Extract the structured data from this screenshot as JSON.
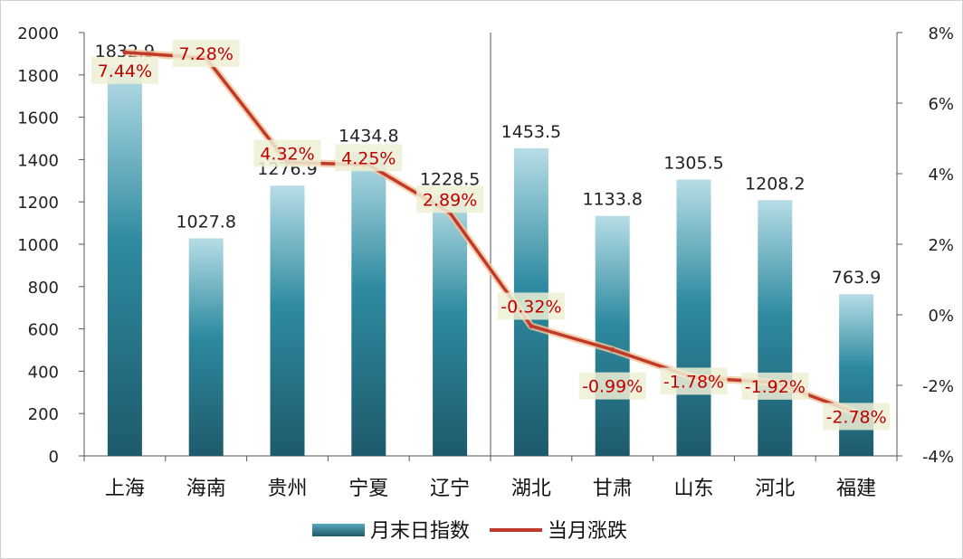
{
  "chart_data": {
    "type": "bar",
    "categories": [
      "上海",
      "海南",
      "贵州",
      "宁夏",
      "辽宁",
      "湖北",
      "甘肃",
      "山东",
      "河北",
      "福建"
    ],
    "series": [
      {
        "name": "月末日指数",
        "type": "bar",
        "axis": "left",
        "values": [
          1832.9,
          1027.8,
          1276.9,
          1434.8,
          1228.5,
          1453.5,
          1133.8,
          1305.5,
          1208.2,
          763.9
        ],
        "labels": [
          "1832.9",
          "1027.8",
          "1276.9",
          "1434.8",
          "1228.5",
          "1453.5",
          "1133.8",
          "1305.5",
          "1208.2",
          "763.9"
        ]
      },
      {
        "name": "当月涨跌",
        "type": "line",
        "axis": "right",
        "values": [
          7.44,
          7.28,
          4.32,
          4.25,
          2.89,
          -0.32,
          -0.99,
          -1.78,
          -1.92,
          -2.78
        ],
        "labels": [
          "7.44%",
          "7.28%",
          "4.32%",
          "4.25%",
          "2.89%",
          "-0.32%",
          "-0.99%",
          "-1.78%",
          "-1.92%",
          "-2.78%"
        ]
      }
    ],
    "y_left": {
      "min": 0,
      "max": 2000,
      "step": 200,
      "ticks": [
        "0",
        "200",
        "400",
        "600",
        "800",
        "1000",
        "1200",
        "1400",
        "1600",
        "1800",
        "2000"
      ]
    },
    "y_right": {
      "min": -4,
      "max": 8,
      "step": 2,
      "ticks": [
        "-4%",
        "-2%",
        "0%",
        "2%",
        "4%",
        "6%",
        "8%"
      ]
    },
    "legend_position": "bottom",
    "grid": false,
    "colors": {
      "bar_top": "#a9d4de",
      "bar_mid": "#2e8aa0",
      "bar_bottom": "#1d5e70",
      "line": "#c0392b",
      "line_glow": "#f2c9a0",
      "label_box": "#eef0d6",
      "pct_text": "#c00000"
    }
  }
}
